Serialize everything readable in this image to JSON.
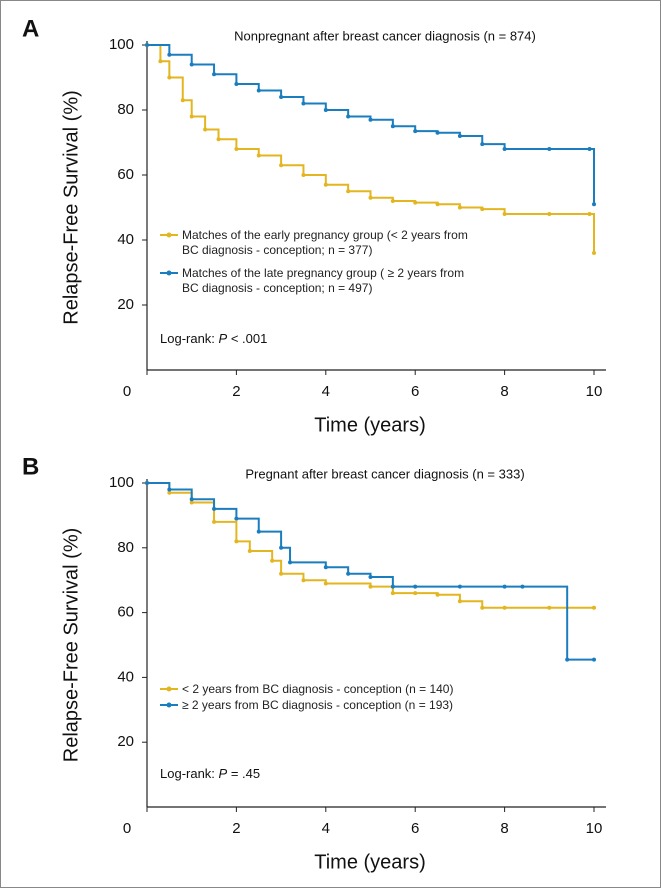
{
  "chart_data": [
    {
      "type": "line",
      "panel_label": "A",
      "title": "Nonpregnant after breast cancer diagnosis (n = 874)",
      "y_label": "Relapse-Free Survival (%)",
      "x_label": "Time (years)",
      "xlim": [
        0,
        10
      ],
      "ylim": [
        0,
        100
      ],
      "xticks": [
        0,
        2,
        4,
        6,
        8,
        10
      ],
      "yticks": [
        20,
        40,
        60,
        80,
        100
      ],
      "series": [
        {
          "name": "Matches of the early pregnancy group (< 2 years from BC diagnosis - conception; n = 377)",
          "color": "#e3b620",
          "x": [
            0,
            0.3,
            0.5,
            0.8,
            1,
            1.3,
            1.6,
            2,
            2.5,
            3,
            3.5,
            4,
            4.5,
            5,
            5.5,
            6,
            6.5,
            7,
            7.5,
            8,
            9,
            9.9,
            10
          ],
          "values": [
            100,
            95,
            90,
            83,
            78,
            74,
            71,
            68,
            66,
            63,
            60,
            57,
            55,
            53,
            52,
            51.5,
            51,
            50,
            49.5,
            48,
            48,
            48,
            36
          ]
        },
        {
          "name": "Matches of the late pregnancy group ( ≥ 2 years from BC diagnosis - conception; n = 497)",
          "color": "#1a7dbf",
          "x": [
            0,
            0.5,
            1,
            1.5,
            2,
            2.5,
            3,
            3.5,
            4,
            4.5,
            5,
            5.5,
            6,
            6.5,
            7,
            7.5,
            8,
            9,
            9.9,
            10
          ],
          "values": [
            100,
            97,
            94,
            91,
            88,
            86,
            84,
            82,
            80,
            78,
            77,
            75,
            73.5,
            73,
            72,
            69.5,
            68,
            68,
            68,
            51
          ]
        }
      ],
      "annotation": [
        "Log-rank: ",
        "P",
        " < .001"
      ]
    },
    {
      "type": "line",
      "panel_label": "B",
      "title": "Pregnant after breast cancer diagnosis (n = 333)",
      "y_label": "Relapse-Free Survival (%)",
      "x_label": "Time (years)",
      "xlim": [
        0,
        10
      ],
      "ylim": [
        0,
        100
      ],
      "xticks": [
        0,
        2,
        4,
        6,
        8,
        10
      ],
      "yticks": [
        20,
        40,
        60,
        80,
        100
      ],
      "series": [
        {
          "name": "< 2 years from BC diagnosis - conception (n = 140)",
          "color": "#e3b620",
          "x": [
            0,
            0.5,
            1,
            1.5,
            2,
            2.3,
            2.8,
            3,
            3.5,
            4,
            5,
            5.5,
            6,
            6.5,
            7,
            7.5,
            8,
            9,
            10
          ],
          "values": [
            100,
            97,
            94,
            88,
            82,
            79,
            76,
            72,
            70,
            69,
            68,
            66,
            66,
            65.5,
            63.5,
            61.5,
            61.5,
            61.5,
            61.5
          ]
        },
        {
          "name": "≥ 2 years from BC diagnosis - conception (n = 193)",
          "color": "#1a7dbf",
          "x": [
            0,
            0.5,
            1,
            1.5,
            2,
            2.5,
            3,
            3.2,
            4,
            4.5,
            5,
            5.5,
            6,
            7,
            8,
            8.4,
            9.4,
            10
          ],
          "values": [
            100,
            98,
            95,
            92,
            89,
            85,
            80,
            75.5,
            74,
            72,
            71,
            68,
            68,
            68,
            68,
            68,
            45.5,
            45.5
          ]
        }
      ],
      "annotation": [
        "Log-rank: ",
        "P",
        " = .45"
      ]
    }
  ]
}
